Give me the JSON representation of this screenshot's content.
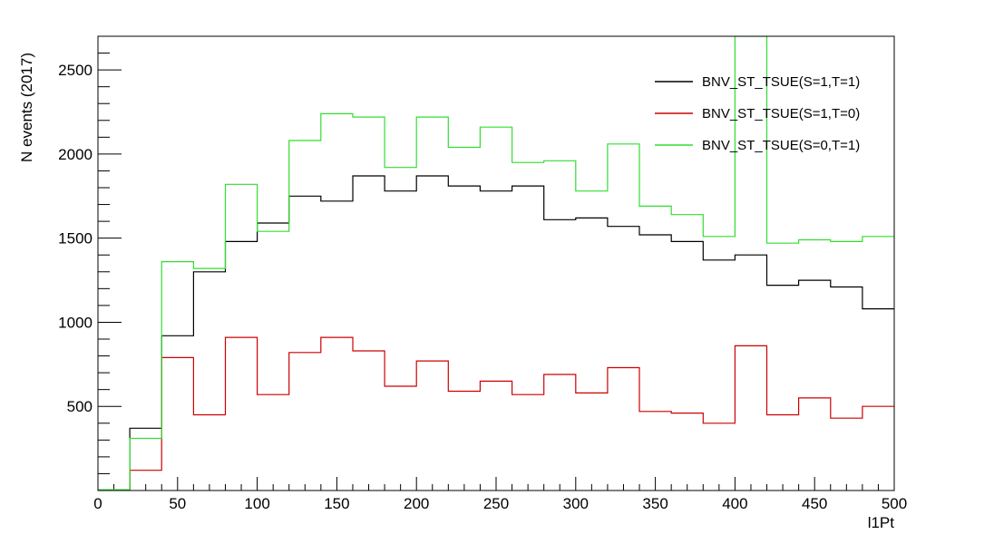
{
  "chart_data": {
    "type": "line",
    "drawstyle": "histogram-steps",
    "title": "",
    "xlabel": "l1Pt",
    "ylabel": "N events (2017)",
    "xlim": [
      0,
      500
    ],
    "ylim": [
      0,
      2700
    ],
    "bin_edges": [
      0,
      20,
      40,
      60,
      80,
      100,
      120,
      140,
      160,
      180,
      200,
      220,
      240,
      260,
      280,
      300,
      320,
      340,
      360,
      380,
      400,
      420,
      440,
      460,
      480,
      500
    ],
    "x_ticks": [
      0,
      50,
      100,
      150,
      200,
      250,
      300,
      350,
      400,
      450,
      500
    ],
    "y_ticks": [
      500,
      1000,
      1500,
      2000,
      2500
    ],
    "grid": false,
    "legend_position": "top-right",
    "series": [
      {
        "name": "BNV_ST_TSUE(S=1,T=1)",
        "color": "#000000",
        "values": [
          5,
          370,
          920,
          1300,
          1480,
          1590,
          1750,
          1720,
          1870,
          1780,
          1870,
          1810,
          1780,
          1810,
          1610,
          1620,
          1570,
          1520,
          1480,
          1370,
          1400,
          1220,
          1250,
          1210,
          1080
        ]
      },
      {
        "name": "BNV_ST_TSUE(S=1,T=0)",
        "color": "#cc0000",
        "values": [
          5,
          120,
          790,
          450,
          910,
          570,
          820,
          910,
          830,
          620,
          770,
          590,
          650,
          570,
          690,
          580,
          730,
          470,
          460,
          400,
          860,
          450,
          550,
          430,
          500
        ]
      },
      {
        "name": "BNV_ST_TSUE(S=0,T=1)",
        "color": "#33dd33",
        "values": [
          5,
          310,
          1360,
          1320,
          1820,
          1540,
          2080,
          2240,
          2220,
          1920,
          2220,
          2040,
          2160,
          1950,
          1960,
          1780,
          2060,
          1690,
          1640,
          1510,
          2700,
          1470,
          1490,
          1480,
          1510
        ]
      }
    ]
  }
}
